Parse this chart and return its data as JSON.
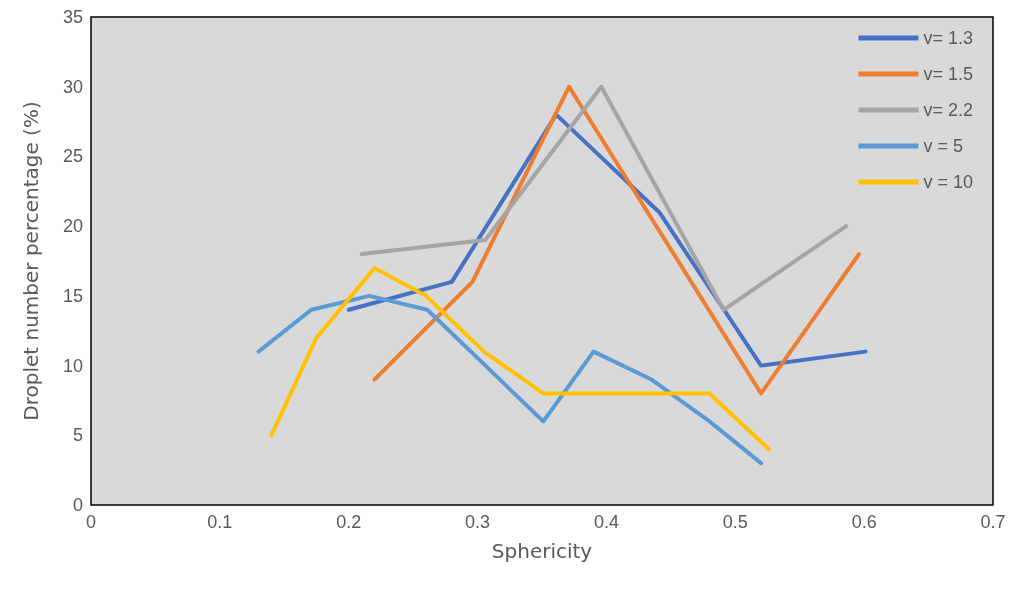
{
  "chart_data": {
    "type": "line",
    "xlabel": "Sphericity",
    "ylabel": "Droplet number percentage (%)",
    "xlim": [
      0,
      0.7
    ],
    "xticks": [
      0,
      0.1,
      0.2,
      0.3,
      0.4,
      0.5,
      0.6,
      0.7
    ],
    "ylim": [
      0,
      35
    ],
    "yticks": [
      0,
      5,
      10,
      15,
      20,
      25,
      30,
      35
    ],
    "grid": false,
    "legend": "top right",
    "marker": "none",
    "line_style": "solid",
    "series": [
      {
        "name": "v= 1.3",
        "color": "#4472c4",
        "x": [
          0.2,
          0.28,
          0.361,
          0.441,
          0.52,
          0.601
        ],
        "values": [
          14,
          16,
          28,
          21,
          10,
          11
        ]
      },
      {
        "name": "v= 1.5",
        "color": "#ed7d31",
        "x": [
          0.22,
          0.296,
          0.371,
          0.52,
          0.596
        ],
        "values": [
          9,
          16,
          30,
          8,
          18
        ]
      },
      {
        "name": "v= 2.2",
        "color": "#a5a5a5",
        "x": [
          0.21,
          0.306,
          0.396,
          0.491,
          0.586
        ],
        "values": [
          18,
          19,
          30,
          14,
          20
        ]
      },
      {
        "name": "v = 5",
        "color": "#5b9bd5",
        "x": [
          0.13,
          0.171,
          0.216,
          0.261,
          0.351,
          0.39,
          0.435,
          0.48,
          0.52
        ],
        "values": [
          11,
          14,
          15,
          14,
          6,
          11,
          9,
          6,
          3
        ]
      },
      {
        "name": "v = 10",
        "color": "#ffc000",
        "x": [
          0.14,
          0.175,
          0.22,
          0.26,
          0.305,
          0.351,
          0.48,
          0.526
        ],
        "values": [
          5,
          12,
          17,
          15,
          11,
          8,
          8,
          4
        ]
      }
    ]
  }
}
